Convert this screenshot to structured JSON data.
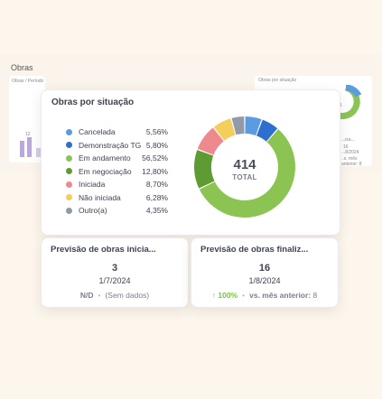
{
  "background": {
    "title": "Obras",
    "left_panel_caption": "Obras / Período",
    "left_panel_value": "12",
    "right_panel_caption": "Obras por situação",
    "right_panel_small_value": "1",
    "right_panel_lower_caption": "...iza...",
    "right_panel_number": "16",
    "right_panel_date": "...8/2024",
    "right_panel_compare": "..s. mês anterior: 8"
  },
  "status_card": {
    "title": "Obras por situação",
    "total": "414",
    "total_label": "TOTAL",
    "legend": [
      {
        "label": "Cancelada",
        "pct": "5,56%",
        "color": "#5b9be0"
      },
      {
        "label": "Demonstração TG",
        "pct": "5,80%",
        "color": "#2d6fcf"
      },
      {
        "label": "Em andamento",
        "pct": "56,52%",
        "color": "#8cc454"
      },
      {
        "label": "Em negociação",
        "pct": "12,80%",
        "color": "#5e9b32"
      },
      {
        "label": "Iniciada",
        "pct": "8,70%",
        "color": "#ee8a8e"
      },
      {
        "label": "Não iniciada",
        "pct": "6,28%",
        "color": "#f5cd5a"
      },
      {
        "label": "Outro(a)",
        "pct": "4,35%",
        "color": "#939aa7"
      }
    ]
  },
  "chart_data": {
    "type": "pie",
    "categories": [
      "Cancelada",
      "Demonstração TG",
      "Em andamento",
      "Em negociação",
      "Iniciada",
      "Não iniciada",
      "Outro(a)"
    ],
    "values": [
      5.56,
      5.8,
      56.52,
      12.8,
      8.7,
      6.28,
      4.35
    ],
    "colors": [
      "#5b9be0",
      "#2d6fcf",
      "#8cc454",
      "#5e9b32",
      "#ee8a8e",
      "#f5cd5a",
      "#939aa7"
    ],
    "title": "Obras por situação",
    "total": 414,
    "donut": true,
    "legend": "left"
  },
  "kpi_start": {
    "title": "Previsão de obras inicia...",
    "value": "3",
    "date": "1/7/2024",
    "compare_value": "N/D",
    "compare_text": "(Sem dados)"
  },
  "kpi_end": {
    "title": "Previsão de obras finaliz...",
    "value": "16",
    "date": "1/8/2024",
    "compare_arrow": "↑",
    "compare_value": "100%",
    "compare_text": "vs. mês anterior:",
    "compare_prev": "8"
  }
}
